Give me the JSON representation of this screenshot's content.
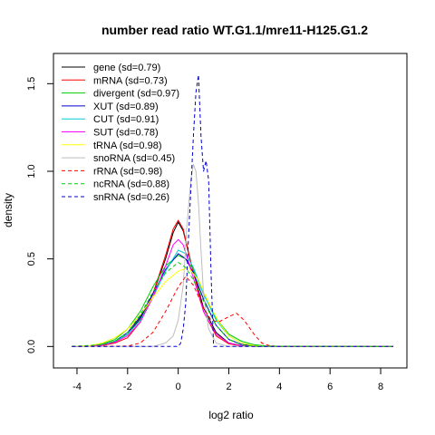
{
  "chart_data": {
    "type": "line",
    "title": "number read ratio WT.G1.1/mre11-H125.G1.2",
    "xlabel": "log2 ratio",
    "ylabel": "density",
    "xlim": [
      -4.5,
      8.5
    ],
    "ylim": [
      -0.05,
      1.6
    ],
    "xticks": [
      -4,
      -2,
      0,
      2,
      4,
      6,
      8
    ],
    "yticks": [
      0.0,
      0.5,
      1.0,
      1.5
    ],
    "xtick_labels": [
      "-4",
      "-2",
      "0",
      "2",
      "4",
      "6",
      "8"
    ],
    "ytick_labels": [
      "0.0",
      "0.5",
      "1.0",
      "1.5"
    ],
    "grid": false,
    "legend_position": "top-left",
    "series": [
      {
        "name": "gene (sd=0.79)",
        "color": "#000000",
        "dash": "solid",
        "x": [
          -4.2,
          -3.5,
          -3,
          -2.5,
          -2,
          -1.5,
          -1,
          -0.5,
          -0.2,
          0,
          0.2,
          0.5,
          1,
          1.5,
          2,
          2.5,
          3,
          3.5,
          8.5
        ],
        "y": [
          0,
          0.002,
          0.01,
          0.03,
          0.07,
          0.16,
          0.3,
          0.5,
          0.65,
          0.71,
          0.66,
          0.48,
          0.22,
          0.08,
          0.02,
          0.005,
          0.001,
          0,
          0
        ]
      },
      {
        "name": "mRNA (sd=0.73)",
        "color": "#ff0000",
        "dash": "solid",
        "x": [
          -4.2,
          -3.5,
          -3,
          -2.5,
          -2,
          -1.5,
          -1,
          -0.5,
          -0.2,
          0,
          0.2,
          0.5,
          1,
          1.5,
          2,
          2.5,
          3,
          3.5,
          8.5
        ],
        "y": [
          0,
          0.001,
          0.006,
          0.02,
          0.05,
          0.14,
          0.3,
          0.52,
          0.67,
          0.72,
          0.67,
          0.48,
          0.2,
          0.06,
          0.015,
          0.003,
          0.001,
          0,
          0
        ]
      },
      {
        "name": "divergent (sd=0.97)",
        "color": "#00cd00",
        "dash": "solid",
        "x": [
          -4.2,
          -3.5,
          -3,
          -2.5,
          -2,
          -1.5,
          -1,
          -0.5,
          0,
          0.3,
          0.6,
          1,
          1.5,
          2,
          2.5,
          3,
          3.5,
          4,
          8.5
        ],
        "y": [
          0,
          0.004,
          0.015,
          0.04,
          0.1,
          0.2,
          0.34,
          0.46,
          0.52,
          0.5,
          0.44,
          0.3,
          0.16,
          0.07,
          0.03,
          0.01,
          0.003,
          0.001,
          0
        ]
      },
      {
        "name": "XUT (sd=0.89)",
        "color": "#0000cd",
        "dash": "solid",
        "x": [
          -4.2,
          -3.5,
          -3,
          -2.5,
          -2,
          -1.5,
          -1,
          -0.5,
          0,
          0.3,
          0.6,
          1,
          1.5,
          2,
          2.5,
          3,
          3.5,
          8.5
        ],
        "y": [
          0,
          0.002,
          0.01,
          0.03,
          0.08,
          0.17,
          0.3,
          0.44,
          0.53,
          0.5,
          0.42,
          0.27,
          0.12,
          0.04,
          0.012,
          0.003,
          0,
          0
        ]
      },
      {
        "name": "CUT (sd=0.91)",
        "color": "#00ced1",
        "dash": "solid",
        "x": [
          -4.2,
          -3.5,
          -3,
          -2.5,
          -2,
          -1.5,
          -1,
          -0.5,
          0,
          0.3,
          0.6,
          1,
          1.5,
          2,
          2.5,
          3,
          3.5,
          8.5
        ],
        "y": [
          0,
          0.002,
          0.01,
          0.03,
          0.07,
          0.15,
          0.28,
          0.43,
          0.55,
          0.53,
          0.45,
          0.3,
          0.15,
          0.06,
          0.02,
          0.005,
          0.001,
          0
        ]
      },
      {
        "name": "SUT (sd=0.78)",
        "color": "#ff00ff",
        "dash": "solid",
        "x": [
          -4.2,
          -3.5,
          -3,
          -2.5,
          -2,
          -1.5,
          -1,
          -0.5,
          -0.2,
          0,
          0.2,
          0.5,
          1,
          1.5,
          2,
          2.5,
          3,
          8.5
        ],
        "y": [
          0,
          0.002,
          0.008,
          0.025,
          0.06,
          0.14,
          0.28,
          0.46,
          0.58,
          0.61,
          0.58,
          0.44,
          0.2,
          0.07,
          0.02,
          0.004,
          0.001,
          0
        ]
      },
      {
        "name": "tRNA (sd=0.98)",
        "color": "#ffff00",
        "dash": "solid",
        "x": [
          -4.2,
          -3.5,
          -3,
          -2.5,
          -2,
          -1.5,
          -1,
          -0.5,
          0,
          0.4,
          0.8,
          1.2,
          1.6,
          2,
          2.5,
          3,
          3.5,
          8.5
        ],
        "y": [
          0,
          0.005,
          0.02,
          0.05,
          0.1,
          0.18,
          0.28,
          0.37,
          0.43,
          0.45,
          0.38,
          0.25,
          0.14,
          0.06,
          0.02,
          0.005,
          0.001,
          0
        ]
      },
      {
        "name": "snoRNA (sd=0.45)",
        "color": "#bebebe",
        "dash": "solid",
        "x": [
          -4.2,
          -1,
          -0.5,
          -0.2,
          0,
          0.2,
          0.35,
          0.5,
          0.6,
          0.7,
          0.8,
          0.9,
          1.0,
          1.2,
          1.5,
          2,
          8.5
        ],
        "y": [
          0,
          0,
          0.02,
          0.06,
          0.15,
          0.35,
          0.7,
          0.95,
          1.04,
          1.0,
          0.82,
          0.55,
          0.3,
          0.1,
          0.02,
          0,
          0
        ]
      },
      {
        "name": "rRNA (sd=0.98)",
        "color": "#ff0000",
        "dash": "dashed",
        "x": [
          -4.2,
          -2,
          -1.5,
          -1,
          -0.5,
          0,
          0.3,
          0.6,
          1,
          1.3,
          1.6,
          2,
          2.3,
          2.6,
          3,
          3.3,
          3.6,
          4,
          8.5
        ],
        "y": [
          0,
          0.002,
          0.02,
          0.08,
          0.2,
          0.34,
          0.4,
          0.35,
          0.22,
          0.15,
          0.14,
          0.17,
          0.19,
          0.15,
          0.07,
          0.02,
          0.005,
          0,
          0
        ]
      },
      {
        "name": "ncRNA (sd=0.88)",
        "color": "#00cd00",
        "dash": "dashed",
        "x": [
          -4.2,
          -3,
          -2.5,
          -2,
          -1.5,
          -1,
          -0.5,
          0,
          0.3,
          0.6,
          1,
          1.5,
          2,
          2.5,
          3,
          8.5
        ],
        "y": [
          0,
          0.01,
          0.03,
          0.08,
          0.18,
          0.31,
          0.42,
          0.48,
          0.45,
          0.38,
          0.26,
          0.12,
          0.04,
          0.01,
          0.002,
          0
        ]
      },
      {
        "name": "snRNA (sd=0.26)",
        "color": "#0000cd",
        "dash": "dashed",
        "x": [
          -4.2,
          0.0,
          0.1,
          0.2,
          0.3,
          0.4,
          0.5,
          0.6,
          0.7,
          0.8,
          0.9,
          1.0,
          1.1,
          1.2,
          1.3,
          1.4,
          8.5
        ],
        "y": [
          0,
          0,
          0.02,
          0.1,
          0.25,
          0.6,
          0.9,
          1.2,
          1.45,
          1.55,
          1.2,
          1.0,
          1.06,
          0.95,
          0.4,
          0,
          0
        ]
      }
    ]
  }
}
